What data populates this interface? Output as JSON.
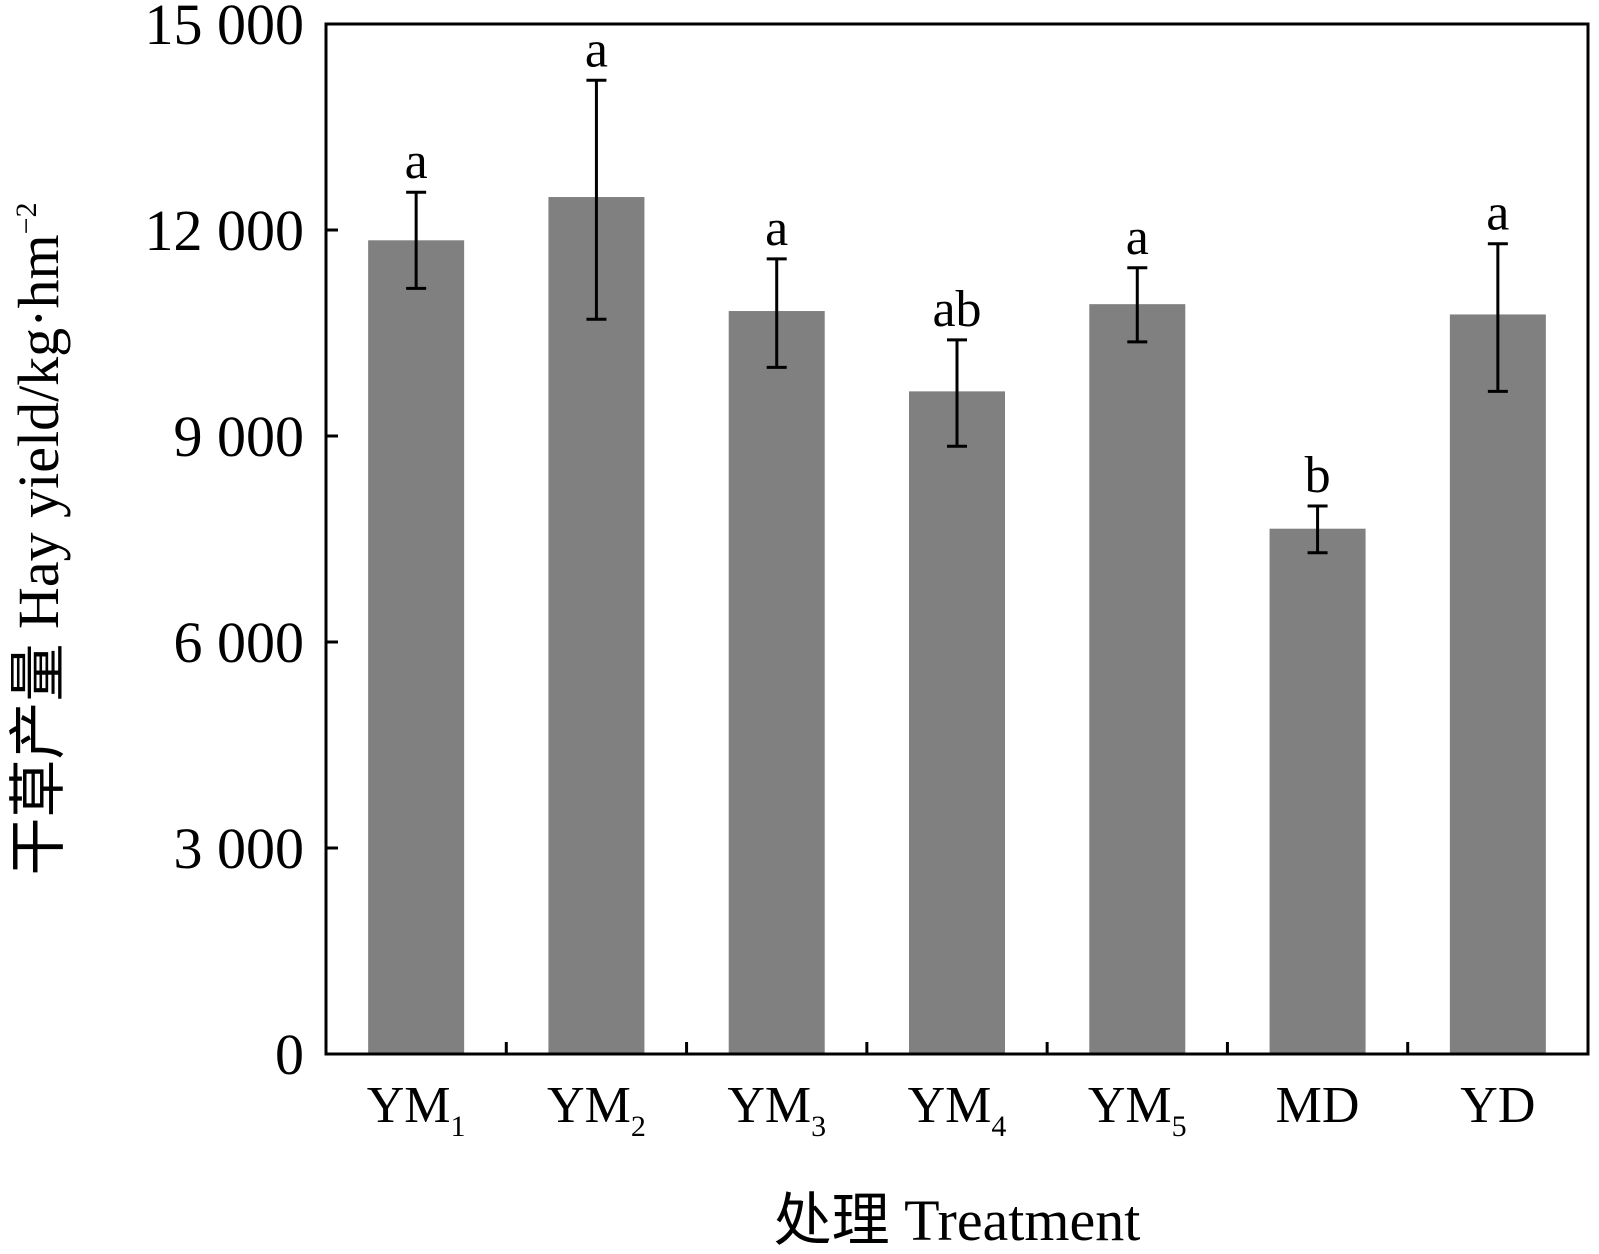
{
  "chart_data": {
    "type": "bar",
    "xlabel": "处理 Treatment",
    "ylabel": {
      "prefix": "干草产量 Hay yield/kg·hm",
      "superscript": "−2"
    },
    "ylim": [
      0,
      15000
    ],
    "yticks": [
      0,
      3000,
      6000,
      9000,
      12000,
      15000
    ],
    "ytick_labels": [
      "0",
      "3 000",
      "6 000",
      "9 000",
      "12 000",
      "15 000"
    ],
    "categories": [
      {
        "main": "YM",
        "sub": "1"
      },
      {
        "main": "YM",
        "sub": "2"
      },
      {
        "main": "YM",
        "sub": "3"
      },
      {
        "main": "YM",
        "sub": "4"
      },
      {
        "main": "YM",
        "sub": "5"
      },
      {
        "main": "MD",
        "sub": ""
      },
      {
        "main": "YD",
        "sub": ""
      }
    ],
    "values": [
      11850,
      12480,
      10820,
      9650,
      10920,
      7650,
      10770
    ],
    "error_low": [
      11150,
      10700,
      10000,
      8850,
      10370,
      7300,
      9650
    ],
    "error_high": [
      12550,
      14180,
      11580,
      10400,
      11450,
      7980,
      11800
    ],
    "significance": [
      "a",
      "a",
      "a",
      "ab",
      "a",
      "b",
      "a"
    ],
    "bar_color": "#808080",
    "grid": false,
    "legend": "none"
  }
}
